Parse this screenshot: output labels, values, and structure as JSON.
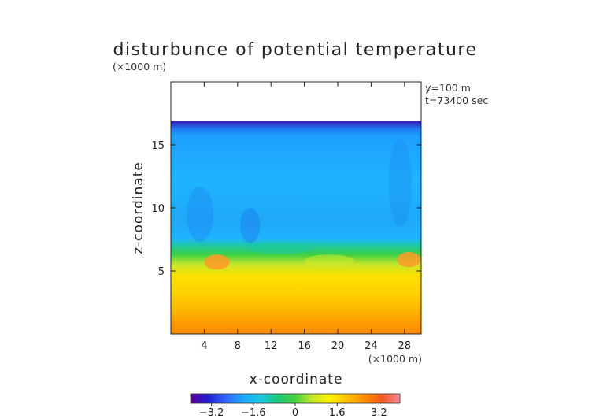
{
  "chart_data": {
    "type": "heatmap",
    "title": "disturbunce of potential temperature",
    "xlabel": "x-coordinate",
    "ylabel": "z-coordinate",
    "x_unit": "(×1000 m)",
    "z_unit": "(×1000 m)",
    "annotations": [
      "y=100 m",
      "t=73400 sec"
    ],
    "xlim": [
      0,
      30
    ],
    "ylim": [
      0,
      20
    ],
    "x_ticks": [
      4,
      8,
      12,
      16,
      20,
      24,
      28
    ],
    "y_ticks": [
      5,
      10,
      15
    ],
    "colorbar": {
      "range": [
        -4,
        4
      ],
      "ticks": [
        -3.2,
        -1.6,
        0,
        1.6,
        3.2
      ],
      "tick_labels": [
        "−3.2",
        "−1.6",
        "0",
        "1.6",
        "3.2"
      ],
      "colors": [
        "#5a00a0",
        "#1e1ec8",
        "#2f68ff",
        "#1ea8ff",
        "#1ec8e0",
        "#1ec878",
        "#46d23c",
        "#c8e628",
        "#fff000",
        "#ffbe00",
        "#ff8c00",
        "#f25a28",
        "#f48c9a"
      ]
    },
    "field_description": {
      "empty_above_z": 16.9,
      "top_cold_layer_z": [
        16.3,
        16.9
      ],
      "upper_region_value_range": [
        -2.4,
        -1.2
      ],
      "transition_z": [
        5.5,
        7.0
      ],
      "lower_region_value_range": [
        1.0,
        2.8
      ],
      "warm_blobs_x": [
        5.5,
        28.5
      ]
    }
  }
}
